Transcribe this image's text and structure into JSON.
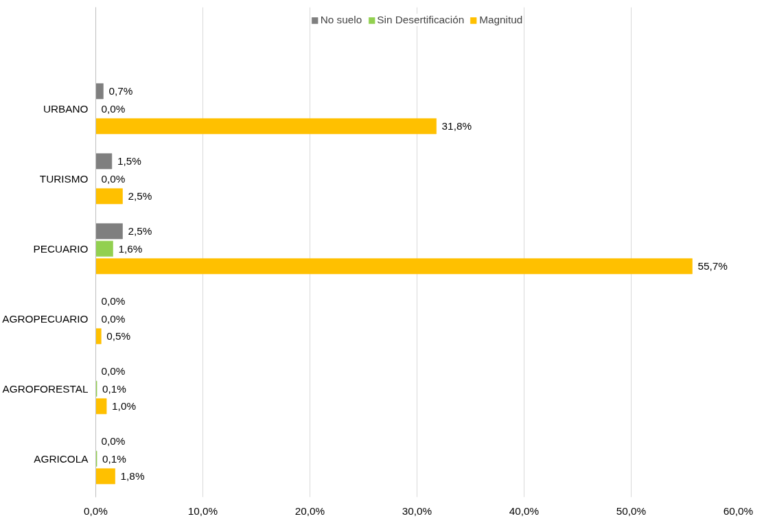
{
  "chart_data": {
    "type": "bar",
    "orientation": "horizontal",
    "categories": [
      "URBANO",
      "TURISMO",
      "PECUARIO",
      "AGROPECUARIO",
      "AGROFORESTAL",
      "AGRICOLA"
    ],
    "series": [
      {
        "name": "No suelo",
        "color": "#7f7f7f",
        "values": [
          0.7,
          1.5,
          2.5,
          0.0,
          0.0,
          0.0
        ],
        "value_labels": [
          "0,7%",
          "1,5%",
          "2,5%",
          "0,0%",
          "0,0%",
          "0,0%"
        ]
      },
      {
        "name": "Sin Desertificación",
        "color": "#92d050",
        "values": [
          0.0,
          0.0,
          1.6,
          0.0,
          0.1,
          0.1
        ],
        "value_labels": [
          "0,0%",
          "0,0%",
          "1,6%",
          "0,0%",
          "0,1%",
          "0,1%"
        ]
      },
      {
        "name": "Magnitud",
        "color": "#ffc000",
        "values": [
          31.8,
          2.5,
          55.7,
          0.5,
          1.0,
          1.8
        ],
        "value_labels": [
          "31,8%",
          "2,5%",
          "55,7%",
          "0,5%",
          "1,0%",
          "1,8%"
        ]
      }
    ],
    "xlim": [
      0,
      60
    ],
    "xticks": [
      {
        "value": 0,
        "label": "0,0%"
      },
      {
        "value": 10,
        "label": "10,0%"
      },
      {
        "value": 20,
        "label": "20,0%"
      },
      {
        "value": 30,
        "label": "30,0%"
      },
      {
        "value": 40,
        "label": "40,0%"
      },
      {
        "value": 50,
        "label": "50,0%"
      },
      {
        "value": 60,
        "label": "60,0%"
      }
    ],
    "grid": "x",
    "legend": "top"
  }
}
